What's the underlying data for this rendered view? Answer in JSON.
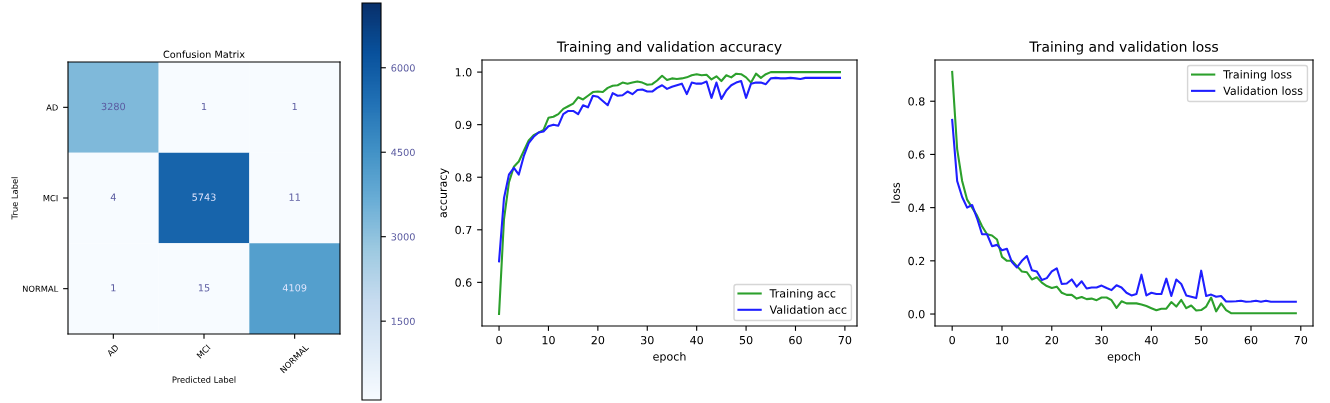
{
  "chart_data": [
    {
      "type": "heatmap",
      "title": "Confusion Matrix",
      "xlabel": "Predicted Label",
      "ylabel": "True Label",
      "categories": [
        "AD",
        "MCI",
        "NORMAL"
      ],
      "y_categories": [
        "AD",
        "MCI",
        "NORMAL"
      ],
      "cells": [
        [
          3280,
          1,
          1
        ],
        [
          4,
          5743,
          11
        ],
        [
          1,
          15,
          4109
        ]
      ],
      "clim": [
        100,
        7150
      ],
      "cticks": [
        1500,
        3000,
        4500,
        6000
      ],
      "data_labels": true
    },
    {
      "type": "line",
      "title": "Training and validation accuracy",
      "xlabel": "epoch",
      "ylabel": "accuracy",
      "x": [
        0,
        1,
        2,
        3,
        4,
        5,
        6,
        7,
        8,
        9,
        10,
        11,
        12,
        13,
        14,
        15,
        16,
        17,
        18,
        19,
        20,
        21,
        22,
        23,
        24,
        25,
        26,
        27,
        28,
        29,
        30,
        31,
        32,
        33,
        34,
        35,
        36,
        37,
        38,
        39,
        40,
        41,
        42,
        43,
        44,
        45,
        46,
        47,
        48,
        49,
        50,
        51,
        52,
        53,
        54,
        55,
        56,
        57,
        58,
        59,
        60,
        61,
        62,
        63,
        64,
        65,
        66,
        67,
        68,
        69
      ],
      "series": [
        {
          "name": "Training acc",
          "color": "#2ca02c",
          "values": [
            0.54,
            0.72,
            0.79,
            0.82,
            0.83,
            0.85,
            0.87,
            0.88,
            0.885,
            0.89,
            0.913,
            0.915,
            0.92,
            0.93,
            0.935,
            0.94,
            0.952,
            0.948,
            0.955,
            0.962,
            0.963,
            0.962,
            0.97,
            0.974,
            0.975,
            0.98,
            0.978,
            0.98,
            0.982,
            0.98,
            0.976,
            0.977,
            0.984,
            0.993,
            0.985,
            0.988,
            0.987,
            0.988,
            0.99,
            0.994,
            0.996,
            0.994,
            0.995,
            0.986,
            0.992,
            0.983,
            0.994,
            0.99,
            0.997,
            0.996,
            0.99,
            0.98,
            0.997,
            0.989,
            0.996,
            1.0,
            1.0,
            1.0,
            1.0,
            1.0,
            1.0,
            1.0,
            1.0,
            1.0,
            1.0,
            1.0,
            1.0,
            1.0,
            1.0,
            1.0
          ]
        },
        {
          "name": "Validation acc",
          "color": "#1f1fff",
          "values": [
            0.64,
            0.76,
            0.805,
            0.818,
            0.805,
            0.84,
            0.865,
            0.877,
            0.885,
            0.887,
            0.897,
            0.9,
            0.898,
            0.92,
            0.926,
            0.926,
            0.92,
            0.937,
            0.933,
            0.955,
            0.953,
            0.945,
            0.937,
            0.96,
            0.955,
            0.956,
            0.963,
            0.958,
            0.966,
            0.967,
            0.963,
            0.963,
            0.97,
            0.975,
            0.968,
            0.972,
            0.975,
            0.978,
            0.958,
            0.98,
            0.978,
            0.978,
            0.982,
            0.951,
            0.98,
            0.949,
            0.965,
            0.975,
            0.98,
            0.983,
            0.951,
            0.978,
            0.98,
            0.98,
            0.977,
            0.988,
            0.989,
            0.988,
            0.988,
            0.989,
            0.988,
            0.987,
            0.989,
            0.989,
            0.989,
            0.989,
            0.989,
            0.989,
            0.989,
            0.989
          ]
        }
      ],
      "xlim": [
        -3.45,
        72.45
      ],
      "xticks": [
        0,
        10,
        20,
        30,
        40,
        50,
        60,
        70
      ],
      "ylim": [
        0.517,
        1.023
      ],
      "yticks": [
        0.6,
        0.7,
        0.8,
        0.9,
        {
          "value": 1,
          "label": "1.0"
        }
      ],
      "legend": "bottom right",
      "grid": false
    },
    {
      "type": "line",
      "title": "Training and validation loss",
      "xlabel": "epoch",
      "ylabel": "loss",
      "x": [
        0,
        1,
        2,
        3,
        4,
        5,
        6,
        7,
        8,
        9,
        10,
        11,
        12,
        13,
        14,
        15,
        16,
        17,
        18,
        19,
        20,
        21,
        22,
        23,
        24,
        25,
        26,
        27,
        28,
        29,
        30,
        31,
        32,
        33,
        34,
        35,
        36,
        37,
        38,
        39,
        40,
        41,
        42,
        43,
        44,
        45,
        46,
        47,
        48,
        49,
        50,
        51,
        52,
        53,
        54,
        55,
        56,
        57,
        58,
        59,
        60,
        61,
        62,
        63,
        64,
        65,
        66,
        67,
        68,
        69
      ],
      "series": [
        {
          "name": "Training loss",
          "color": "#2ca02c",
          "values": [
            0.91,
            0.62,
            0.5,
            0.43,
            0.4,
            0.37,
            0.33,
            0.3,
            0.295,
            0.28,
            0.215,
            0.2,
            0.2,
            0.18,
            0.16,
            0.157,
            0.13,
            0.138,
            0.118,
            0.105,
            0.098,
            0.103,
            0.08,
            0.072,
            0.072,
            0.058,
            0.064,
            0.056,
            0.058,
            0.052,
            0.062,
            0.062,
            0.052,
            0.023,
            0.048,
            0.04,
            0.04,
            0.04,
            0.036,
            0.03,
            0.022,
            0.014,
            0.02,
            0.02,
            0.045,
            0.028,
            0.053,
            0.022,
            0.032,
            0.013,
            0.015,
            0.028,
            0.062,
            0.01,
            0.04,
            0.015,
            0.003,
            0.003,
            0.003,
            0.003,
            0.003,
            0.003,
            0.003,
            0.003,
            0.003,
            0.003,
            0.003,
            0.003,
            0.003,
            0.003
          ]
        },
        {
          "name": "Validation loss",
          "color": "#1f1fff",
          "values": [
            0.73,
            0.5,
            0.44,
            0.4,
            0.41,
            0.36,
            0.3,
            0.3,
            0.255,
            0.26,
            0.24,
            0.245,
            0.195,
            0.175,
            0.2,
            0.218,
            0.165,
            0.16,
            0.128,
            0.135,
            0.16,
            0.172,
            0.113,
            0.115,
            0.13,
            0.103,
            0.123,
            0.096,
            0.1,
            0.1,
            0.107,
            0.098,
            0.09,
            0.108,
            0.1,
            0.08,
            0.07,
            0.075,
            0.148,
            0.07,
            0.08,
            0.075,
            0.075,
            0.133,
            0.068,
            0.13,
            0.113,
            0.07,
            0.065,
            0.06,
            0.163,
            0.068,
            0.073,
            0.065,
            0.068,
            0.047,
            0.047,
            0.048,
            0.05,
            0.046,
            0.047,
            0.05,
            0.046,
            0.05,
            0.046,
            0.046,
            0.046,
            0.046,
            0.046,
            0.046
          ]
        }
      ],
      "xlim": [
        -3.45,
        72.45
      ],
      "xticks": [
        0,
        10,
        20,
        30,
        40,
        50,
        60,
        70
      ],
      "ylim": [
        -0.045,
        0.955
      ],
      "yticks": [
        {
          "value": 0,
          "label": "0.0"
        },
        0.2,
        0.4,
        0.6,
        0.8
      ],
      "legend": "top right",
      "grid": false
    }
  ]
}
